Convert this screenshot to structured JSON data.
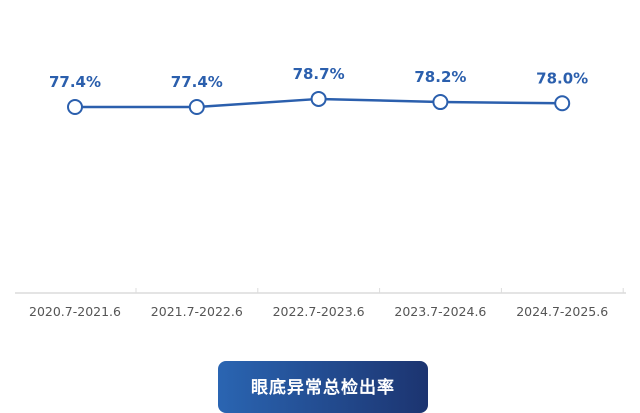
{
  "chart_data": {
    "type": "line",
    "categories": [
      "2020.7-2021.6",
      "2021.7-2022.6",
      "2022.7-2023.6",
      "2023.7-2024.6",
      "2024.7-2025.6"
    ],
    "values": [
      77.4,
      77.4,
      78.7,
      78.2,
      78.0
    ],
    "data_labels": [
      "77.4%",
      "77.4%",
      "78.7%",
      "78.2%",
      "78.0%"
    ],
    "title": "眼底异常总检出率",
    "line_color": "#2b5fad",
    "grid": false
  }
}
